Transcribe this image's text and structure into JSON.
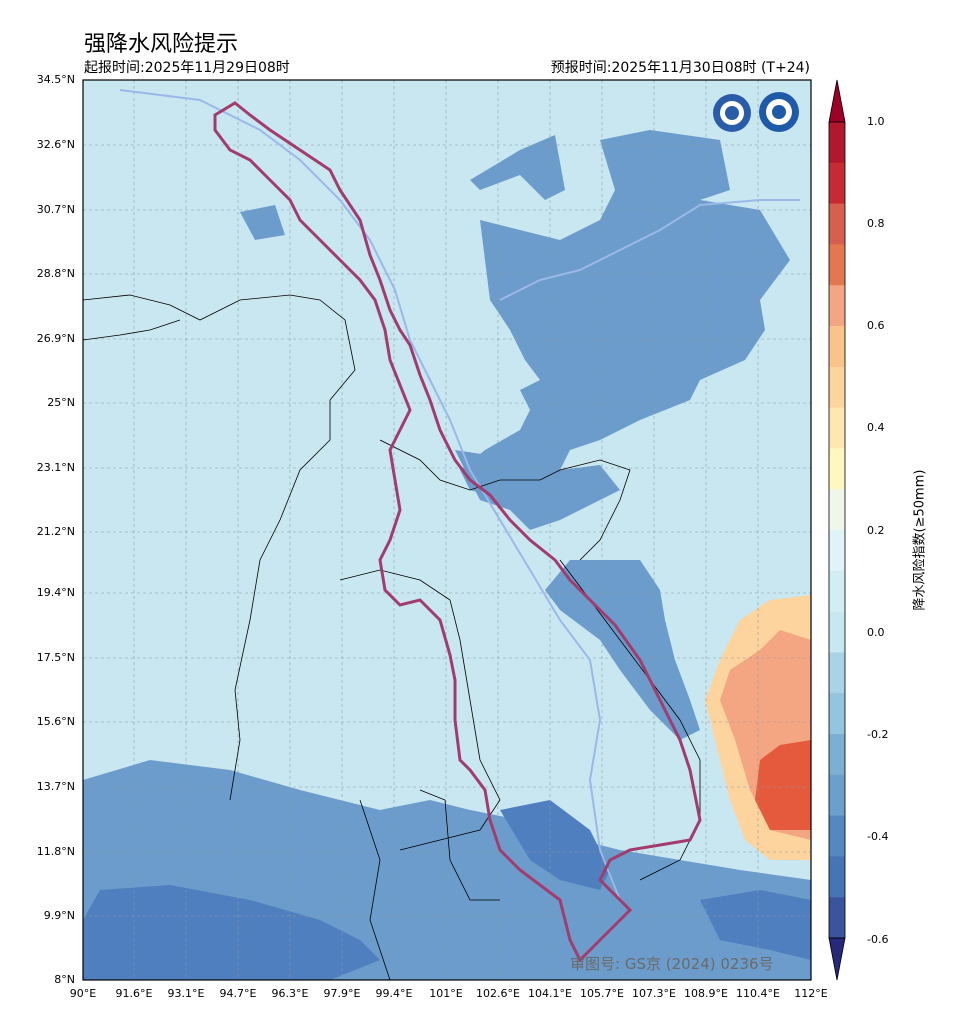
{
  "header": {
    "title": "强降水风险提示",
    "issue_time": "起报时间:2025年11月29日08时",
    "valid_time": "预报时间:2025年11月30日08时 (T+24)"
  },
  "axes": {
    "y_ticks": [
      "34.5°N",
      "32.6°N",
      "30.7°N",
      "28.8°N",
      "26.9°N",
      "25°N",
      "23.1°N",
      "21.2°N",
      "19.4°N",
      "17.5°N",
      "15.6°N",
      "13.7°N",
      "11.8°N",
      "9.9°N",
      "8°N"
    ],
    "x_ticks": [
      "90°E",
      "91.6°E",
      "93.1°E",
      "94.7°E",
      "96.3°E",
      "97.9°E",
      "99.4°E",
      "101°E",
      "102.6°E",
      "104.1°E",
      "105.7°E",
      "107.3°E",
      "108.9°E",
      "110.4°E",
      "112°E"
    ]
  },
  "colorbar": {
    "label": "降水风险指数(≥50mm)",
    "ticks": [
      "1.0",
      "0.8",
      "0.6",
      "0.4",
      "0.2",
      "0.0",
      "-0.2",
      "-0.4",
      "-0.6"
    ],
    "colors": [
      "#b2182b",
      "#d6604d",
      "#f4a582",
      "#fdd49e",
      "#fff7c0",
      "#e0f3f8",
      "#c6e8f0",
      "#92c5de",
      "#6aa0cc",
      "#4575b4",
      "#313695"
    ]
  },
  "map": {
    "base_color": "#c9e7f0",
    "low_color": "#6b9ccb",
    "lower_color": "#4f7fbf",
    "high_color": "#fdd49e",
    "higher_color": "#f4a582",
    "highest_color": "#e55a3c"
  },
  "watermark": "审图号: GS京 (2024) 0236号"
}
